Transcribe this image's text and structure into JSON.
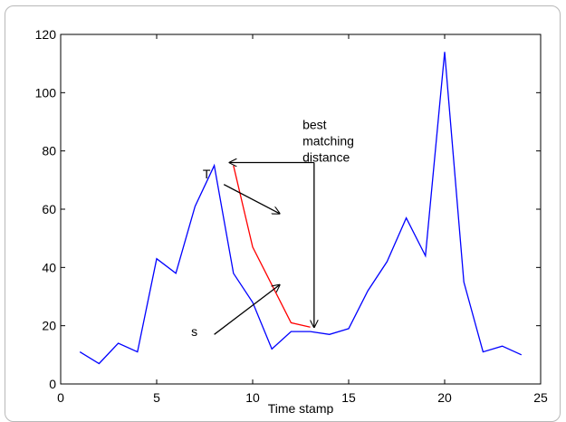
{
  "chart_data": {
    "type": "line",
    "title": "",
    "xlabel": "Time stamp",
    "ylabel": "",
    "xlim": [
      0,
      25
    ],
    "ylim": [
      0,
      120
    ],
    "x_ticks": [
      0,
      5,
      10,
      15,
      20,
      25
    ],
    "y_ticks": [
      0,
      20,
      40,
      60,
      80,
      100,
      120
    ],
    "grid": false,
    "series": [
      {
        "color": "#0000ff",
        "x": [
          1,
          2,
          3,
          4,
          5,
          6,
          7,
          8,
          9,
          10,
          11,
          12,
          13,
          14,
          15,
          16,
          17,
          18,
          19,
          20,
          21,
          22,
          23,
          24
        ],
        "y": [
          11,
          7,
          14,
          11,
          43,
          38,
          61,
          75,
          38,
          28,
          12,
          18,
          18,
          17,
          19,
          32,
          42,
          57,
          44,
          114,
          35,
          11,
          13,
          10
        ]
      },
      {
        "color": "#ff0000",
        "x": [
          9,
          10,
          11,
          12,
          13
        ],
        "y": [
          75,
          47,
          34,
          21,
          19.5
        ]
      }
    ],
    "annotations": [
      {
        "text": "T",
        "text_at": [
          7.4,
          70.5
        ],
        "arrow_from": [
          8.5,
          68.5
        ],
        "arrow_to": [
          11.4,
          58.5
        ]
      },
      {
        "text": "s",
        "text_at": [
          6.8,
          16.5
        ],
        "arrow_from": [
          8,
          17
        ],
        "arrow_to": [
          11.4,
          34
        ]
      },
      {
        "text": "best matching distance",
        "lines": [
          "best",
          "matching",
          "distance"
        ],
        "text_at": [
          12.6,
          87.5
        ]
      },
      {
        "arrow_from": [
          13.2,
          76
        ],
        "arrow_to": [
          8.8,
          76
        ]
      },
      {
        "arrow_from": [
          13.2,
          76
        ],
        "arrow_to": [
          13.2,
          19.5
        ]
      }
    ]
  }
}
